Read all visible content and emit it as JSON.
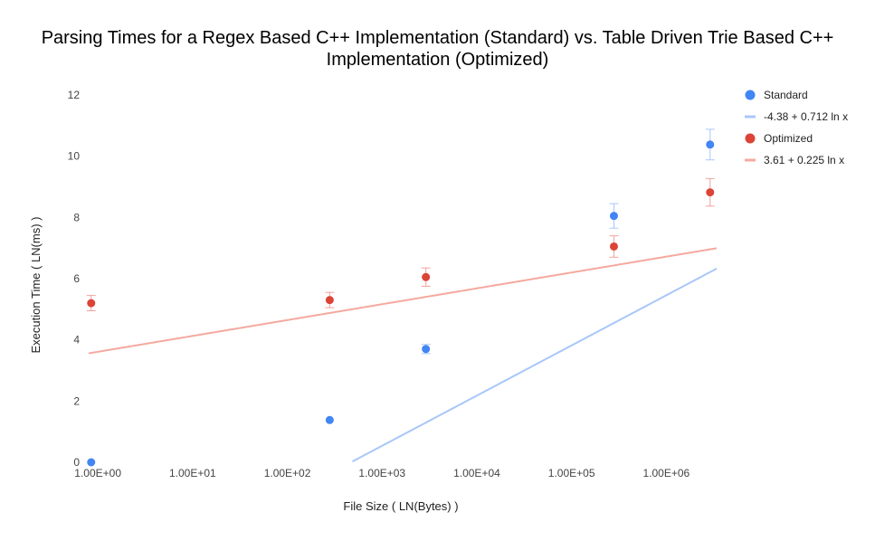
{
  "chart_data": {
    "type": "scatter",
    "title_line1": "Parsing Times for a Regex Based C++ Implementation (Standard) vs. Table Driven Trie Based C++",
    "title_line2": "Implementation (Optimized)",
    "xlabel": "File Size ( LN(Bytes) )",
    "ylabel": "Execution Time ( LN(ms) )",
    "x_scale": "log",
    "xlim": [
      0.8,
      3400000
    ],
    "ylim": [
      0,
      12
    ],
    "x_ticks": [
      1,
      10,
      100,
      1000,
      10000,
      100000,
      1000000
    ],
    "x_tick_labels": [
      "1.00E+00",
      "1.00E+01",
      "1.00E+02",
      "1.00E+03",
      "1.00E+04",
      "1.00E+05",
      "1.00E+06"
    ],
    "y_ticks": [
      0,
      2,
      4,
      6,
      8,
      10,
      12
    ],
    "y_tick_labels": [
      "0",
      "2",
      "4",
      "6",
      "8",
      "10",
      "12"
    ],
    "legend_position": "right",
    "series": [
      {
        "name": "Standard",
        "color": "#4285f4",
        "error_color": "#a8c7fa",
        "points": [
          {
            "x": 0.85,
            "y": 0.0,
            "err": 0
          },
          {
            "x": 280,
            "y": 1.38,
            "err": 0
          },
          {
            "x": 2900,
            "y": 3.7,
            "err": 0.15
          },
          {
            "x": 280000,
            "y": 8.05,
            "err": 0.4
          },
          {
            "x": 2900000,
            "y": 10.38,
            "err": 0.5
          }
        ]
      },
      {
        "name": "Optimized",
        "color": "#db4437",
        "error_color": "#f0a39c",
        "points": [
          {
            "x": 0.85,
            "y": 5.2,
            "err": 0.25
          },
          {
            "x": 280,
            "y": 5.3,
            "err": 0.25
          },
          {
            "x": 2900,
            "y": 6.05,
            "err": 0.3
          },
          {
            "x": 280000,
            "y": 7.05,
            "err": 0.35
          },
          {
            "x": 2900000,
            "y": 8.82,
            "err": 0.45
          }
        ]
      }
    ],
    "trendlines": [
      {
        "name": "-4.38 + 0.712 ln x",
        "a": -4.38,
        "b": 0.712,
        "color": "#a8c7fa"
      },
      {
        "name": "3.61 + 0.225 ln x",
        "a": 3.61,
        "b": 0.225,
        "color": "#f4a9a0"
      }
    ],
    "legend": [
      {
        "label": "Standard",
        "kind": "dot",
        "color": "#4285f4"
      },
      {
        "label": "-4.38 + 0.712 ln x",
        "kind": "line",
        "color": "#a8c7fa"
      },
      {
        "label": "Optimized",
        "kind": "dot",
        "color": "#db4437"
      },
      {
        "label": "3.61 + 0.225 ln x",
        "kind": "line",
        "color": "#f4a9a0"
      }
    ]
  }
}
